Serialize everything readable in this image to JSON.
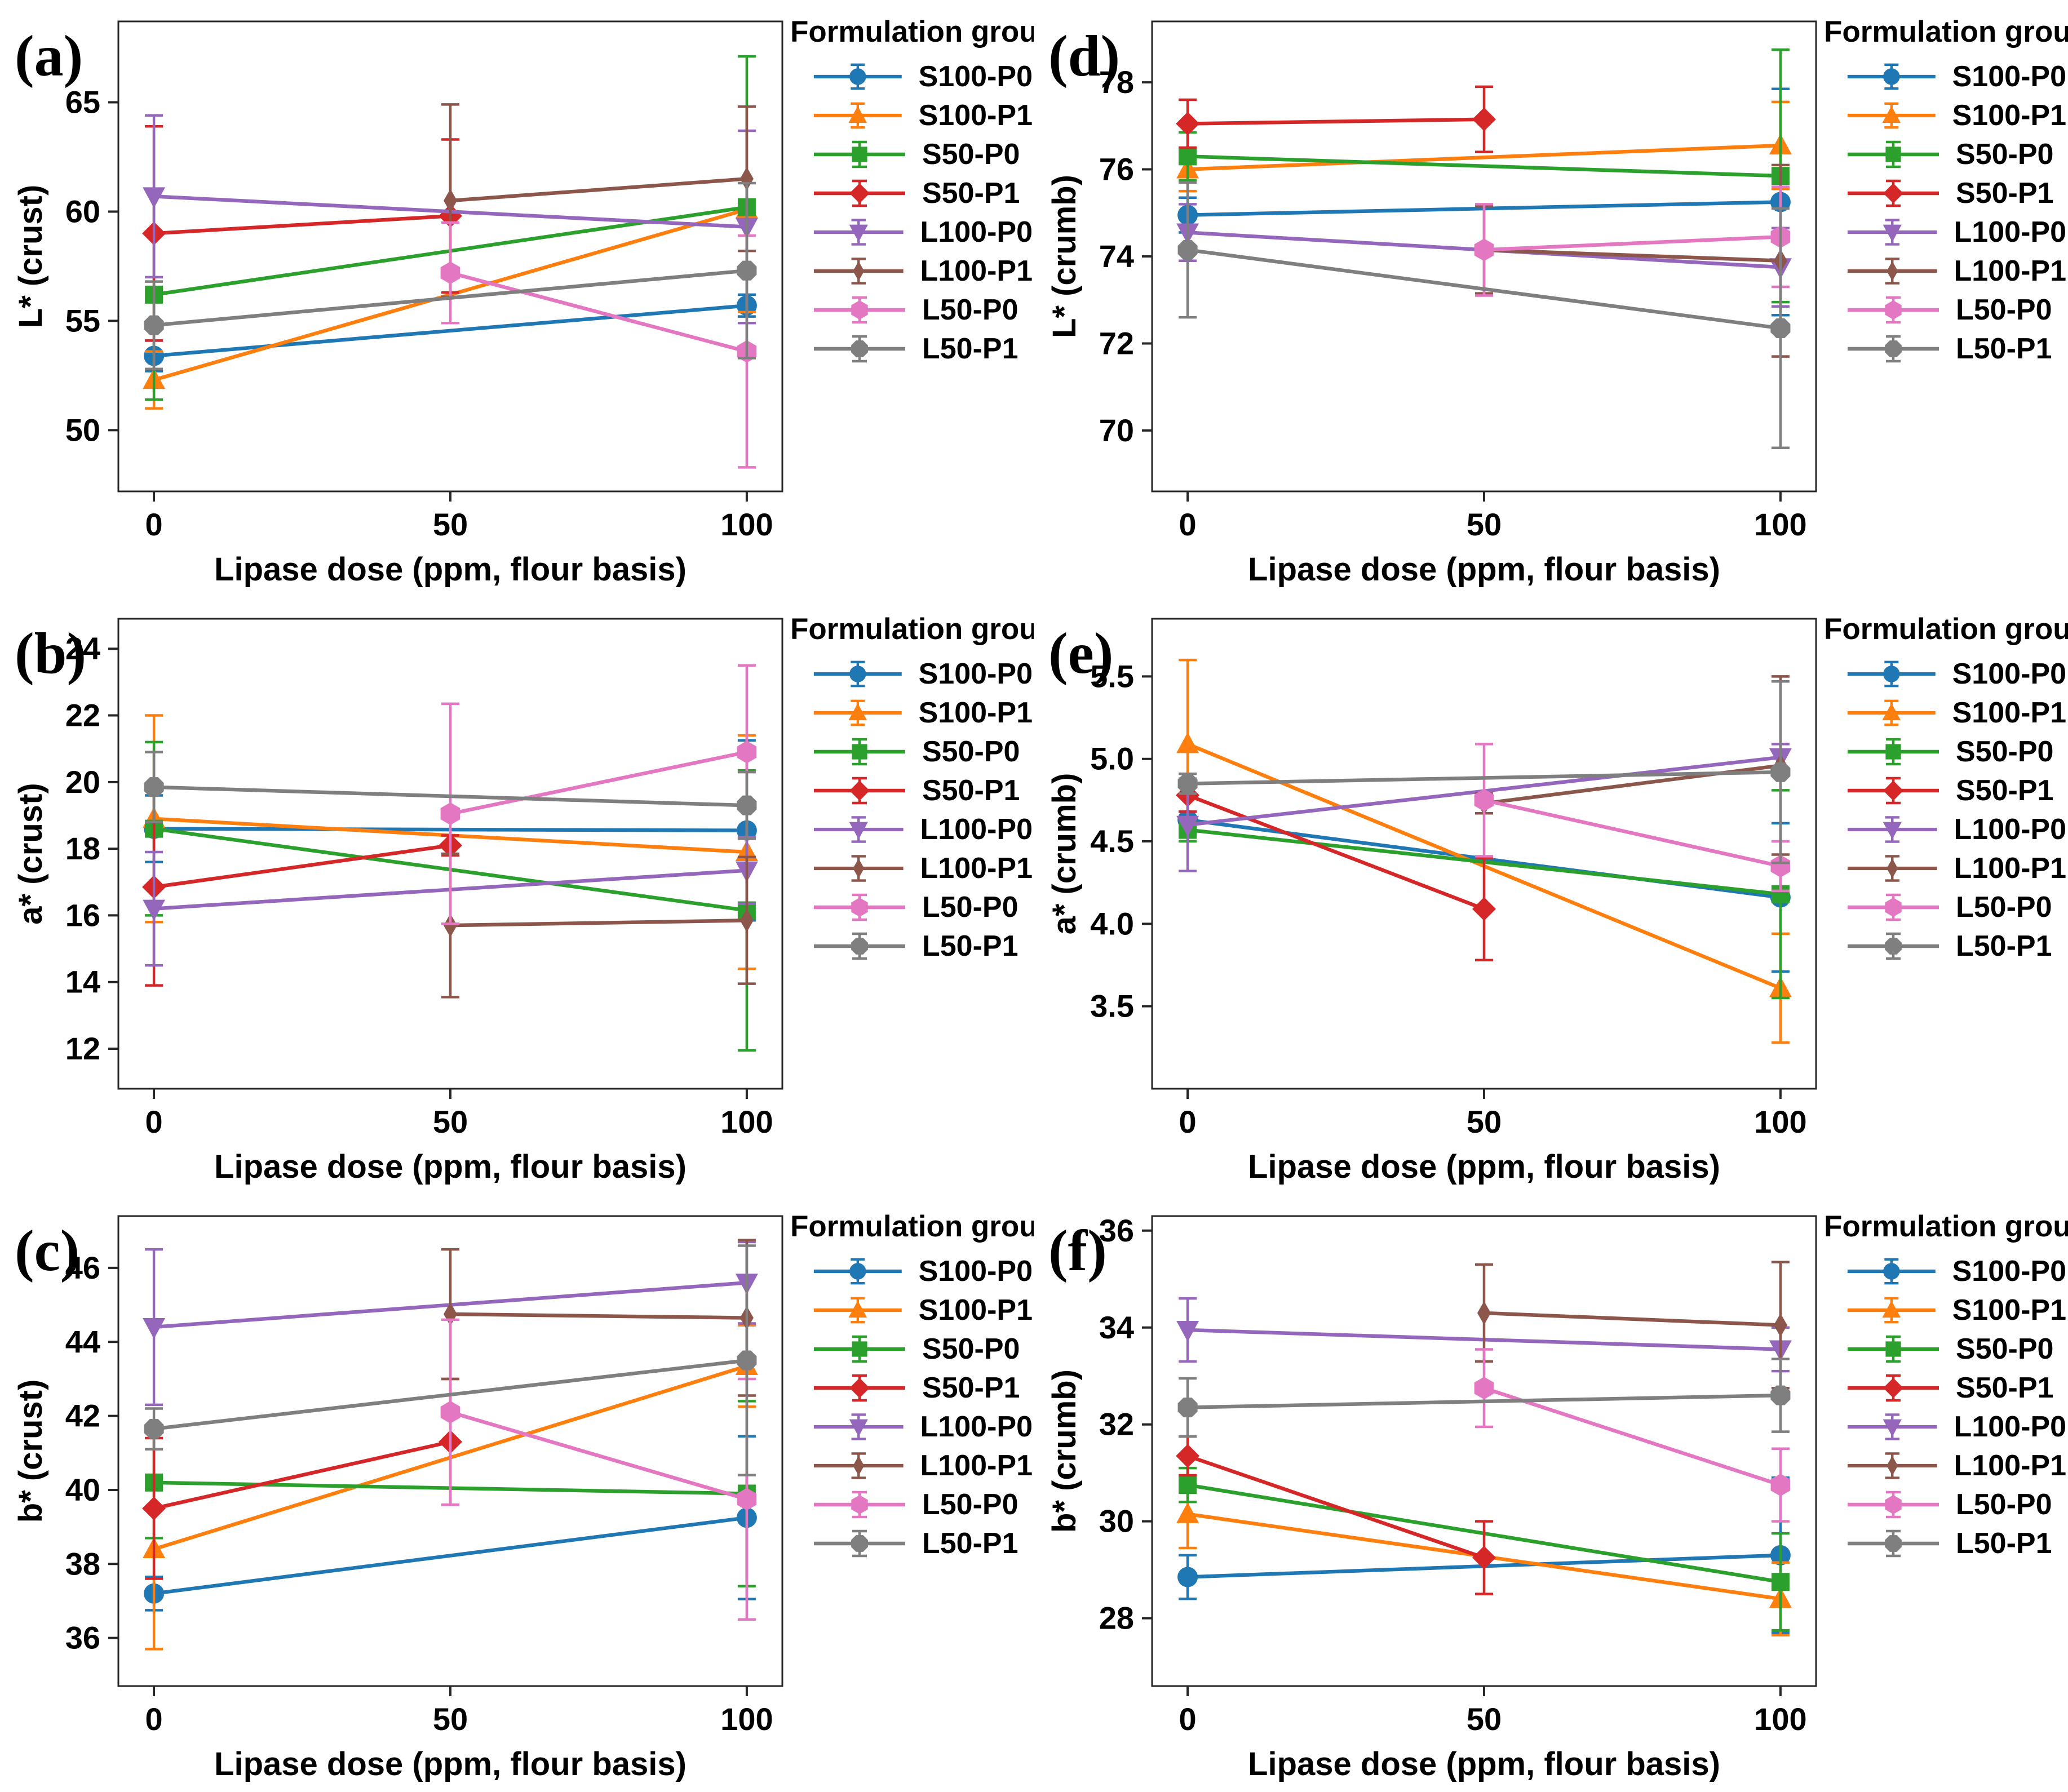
{
  "style": {
    "background": "#ffffff",
    "spine_color": "#262626",
    "text_color": "#000000"
  },
  "legend": {
    "title": "Formulation group",
    "entries": [
      {
        "label": "S100-P0",
        "color": "#1f77b4",
        "marker": "circle"
      },
      {
        "label": "S100-P1",
        "color": "#ff7f0e",
        "marker": "triangle-up"
      },
      {
        "label": "S50-P0",
        "color": "#2ca02c",
        "marker": "square"
      },
      {
        "label": "S50-P1",
        "color": "#d62728",
        "marker": "diamond"
      },
      {
        "label": "L100-P0",
        "color": "#9467bd",
        "marker": "triangle-down"
      },
      {
        "label": "L100-P1",
        "color": "#8c564b",
        "marker": "thin-diamond"
      },
      {
        "label": "L50-P0",
        "color": "#e377c2",
        "marker": "hexagon"
      },
      {
        "label": "L50-P1",
        "color": "#7f7f7f",
        "marker": "octagon"
      }
    ]
  },
  "chart_data": [
    {
      "type": "line",
      "panel_label": "(a)",
      "ylabel": "L* (crust)",
      "xlabel": "Lipase dose (ppm, flour basis)",
      "xticks": [
        0,
        50,
        100
      ],
      "xtick_labels": [
        "0",
        "50",
        "100"
      ],
      "xlim": [
        -6,
        106
      ],
      "yticks": [
        50,
        55,
        60,
        65
      ],
      "ytick_labels": [
        "50",
        "55",
        "60",
        "65"
      ],
      "ylim": [
        47.2,
        68.7
      ],
      "grid": false,
      "legend_position": "right",
      "series": [
        {
          "name": "S100-P0",
          "x": [
            0,
            100
          ],
          "y": [
            53.4,
            55.7
          ],
          "yerr": [
            0.7,
            0.5
          ]
        },
        {
          "name": "S100-P1",
          "x": [
            0,
            100
          ],
          "y": [
            52.3,
            60.1
          ],
          "yerr": [
            1.3,
            4.7
          ]
        },
        {
          "name": "S50-P0",
          "x": [
            0,
            100
          ],
          "y": [
            56.2,
            60.2
          ],
          "yerr": [
            4.8,
            6.9
          ]
        },
        {
          "name": "S50-P1",
          "x": [
            0,
            50
          ],
          "y": [
            59.0,
            59.8
          ],
          "yerr": [
            4.9,
            3.5
          ]
        },
        {
          "name": "L100-P0",
          "x": [
            0,
            100
          ],
          "y": [
            60.7,
            59.3
          ],
          "yerr": [
            3.7,
            4.4
          ]
        },
        {
          "name": "L100-P1",
          "x": [
            50,
            100
          ],
          "y": [
            60.5,
            61.5
          ],
          "yerr": [
            4.4,
            3.3
          ]
        },
        {
          "name": "L50-P0",
          "x": [
            50,
            100
          ],
          "y": [
            57.2,
            53.6
          ],
          "yerr": [
            2.3,
            5.3
          ]
        },
        {
          "name": "L50-P1",
          "x": [
            0,
            100
          ],
          "y": [
            54.8,
            57.3
          ],
          "yerr": [
            2.0,
            4.0
          ]
        }
      ]
    },
    {
      "type": "line",
      "panel_label": "(b)",
      "ylabel": "a* (crust)",
      "xlabel": "Lipase dose (ppm, flour basis)",
      "xticks": [
        0,
        50,
        100
      ],
      "xtick_labels": [
        "0",
        "50",
        "100"
      ],
      "xlim": [
        -6,
        106
      ],
      "yticks": [
        12,
        14,
        16,
        18,
        20,
        22,
        24
      ],
      "ytick_labels": [
        "12",
        "14",
        "16",
        "18",
        "20",
        "22",
        "24"
      ],
      "ylim": [
        10.8,
        24.9
      ],
      "grid": false,
      "legend_position": "right",
      "series": [
        {
          "name": "S100-P0",
          "x": [
            0,
            100
          ],
          "y": [
            18.6,
            18.55
          ],
          "yerr": [
            1.0,
            2.7
          ]
        },
        {
          "name": "S100-P1",
          "x": [
            0,
            100
          ],
          "y": [
            18.9,
            17.9
          ],
          "yerr": [
            3.1,
            3.5
          ]
        },
        {
          "name": "S50-P0",
          "x": [
            0,
            100
          ],
          "y": [
            18.6,
            16.15
          ],
          "yerr": [
            2.6,
            4.2
          ]
        },
        {
          "name": "S50-P1",
          "x": [
            0,
            50
          ],
          "y": [
            16.85,
            18.1
          ],
          "yerr": [
            2.95,
            0.3
          ]
        },
        {
          "name": "L100-P0",
          "x": [
            0,
            100
          ],
          "y": [
            16.2,
            17.35
          ],
          "yerr": [
            1.7,
            1.0
          ]
        },
        {
          "name": "L100-P1",
          "x": [
            50,
            100
          ],
          "y": [
            15.7,
            15.85
          ],
          "yerr": [
            2.15,
            1.9
          ]
        },
        {
          "name": "L50-P0",
          "x": [
            50,
            100
          ],
          "y": [
            19.05,
            20.9
          ],
          "yerr": [
            3.3,
            2.6
          ]
        },
        {
          "name": "L50-P1",
          "x": [
            0,
            100
          ],
          "y": [
            19.85,
            19.3
          ],
          "yerr": [
            1.05,
            1.0
          ]
        }
      ]
    },
    {
      "type": "line",
      "panel_label": "(c)",
      "ylabel": "b* (crust)",
      "xlabel": "Lipase dose (ppm, flour basis)",
      "xticks": [
        0,
        50,
        100
      ],
      "xtick_labels": [
        "0",
        "50",
        "100"
      ],
      "xlim": [
        -6,
        106
      ],
      "yticks": [
        36,
        38,
        40,
        42,
        44,
        46
      ],
      "ytick_labels": [
        "36",
        "38",
        "40",
        "42",
        "44",
        "46"
      ],
      "ylim": [
        34.7,
        47.4
      ],
      "grid": false,
      "legend_position": "right",
      "series": [
        {
          "name": "S100-P0",
          "x": [
            0,
            100
          ],
          "y": [
            37.2,
            39.25
          ],
          "yerr": [
            0.45,
            2.2
          ]
        },
        {
          "name": "S100-P1",
          "x": [
            0,
            100
          ],
          "y": [
            38.4,
            43.35
          ],
          "yerr": [
            2.7,
            1.1
          ]
        },
        {
          "name": "S50-P0",
          "x": [
            0,
            100
          ],
          "y": [
            40.2,
            39.9
          ],
          "yerr": [
            1.5,
            2.5
          ]
        },
        {
          "name": "S50-P1",
          "x": [
            0,
            50
          ],
          "y": [
            39.5,
            41.3
          ],
          "yerr": [
            1.9,
            1.7
          ]
        },
        {
          "name": "L100-P0",
          "x": [
            0,
            100
          ],
          "y": [
            44.4,
            45.6
          ],
          "yerr": [
            2.1,
            1.1
          ]
        },
        {
          "name": "L100-P1",
          "x": [
            50,
            100
          ],
          "y": [
            44.75,
            44.65
          ],
          "yerr": [
            1.75,
            2.1
          ]
        },
        {
          "name": "L50-P0",
          "x": [
            50,
            100
          ],
          "y": [
            42.1,
            39.75
          ],
          "yerr": [
            2.5,
            3.25
          ]
        },
        {
          "name": "L50-P1",
          "x": [
            0,
            100
          ],
          "y": [
            41.65,
            43.5
          ],
          "yerr": [
            0.55,
            3.1
          ]
        }
      ]
    },
    {
      "type": "line",
      "panel_label": "(d)",
      "ylabel": "L* (crumb)",
      "xlabel": "Lipase dose (ppm, flour basis)",
      "xticks": [
        0,
        50,
        100
      ],
      "xtick_labels": [
        "0",
        "50",
        "100"
      ],
      "xlim": [
        -6,
        106
      ],
      "yticks": [
        70,
        72,
        74,
        76,
        78
      ],
      "ytick_labels": [
        "70",
        "72",
        "74",
        "76",
        "78"
      ],
      "ylim": [
        68.6,
        79.4
      ],
      "grid": false,
      "legend_position": "right",
      "series": [
        {
          "name": "S100-P0",
          "x": [
            0,
            100
          ],
          "y": [
            74.95,
            75.25
          ],
          "yerr": [
            0.4,
            2.6
          ]
        },
        {
          "name": "S100-P1",
          "x": [
            0,
            100
          ],
          "y": [
            76.0,
            76.55
          ],
          "yerr": [
            0.5,
            1.0
          ]
        },
        {
          "name": "S50-P0",
          "x": [
            0,
            100
          ],
          "y": [
            76.3,
            75.85
          ],
          "yerr": [
            0.55,
            2.9
          ]
        },
        {
          "name": "S50-P1",
          "x": [
            0,
            50
          ],
          "y": [
            77.05,
            77.15
          ],
          "yerr": [
            0.55,
            0.75
          ]
        },
        {
          "name": "L100-P0",
          "x": [
            0,
            100
          ],
          "y": [
            74.55,
            73.75
          ],
          "yerr": [
            0.65,
            0.9
          ]
        },
        {
          "name": "L100-P1",
          "x": [
            50,
            100
          ],
          "y": [
            74.15,
            73.9
          ],
          "yerr": [
            1.0,
            2.2
          ]
        },
        {
          "name": "L50-P0",
          "x": [
            50,
            100
          ],
          "y": [
            74.15,
            74.45
          ],
          "yerr": [
            1.05,
            1.15
          ]
        },
        {
          "name": "L50-P1",
          "x": [
            0,
            100
          ],
          "y": [
            74.15,
            72.35
          ],
          "yerr": [
            1.55,
            2.75
          ]
        }
      ]
    },
    {
      "type": "line",
      "panel_label": "(e)",
      "ylabel": "a* (crumb)",
      "xlabel": "Lipase dose (ppm, flour basis)",
      "xticks": [
        0,
        50,
        100
      ],
      "xtick_labels": [
        "0",
        "50",
        "100"
      ],
      "xlim": [
        -6,
        106
      ],
      "yticks": [
        3.5,
        4.0,
        4.5,
        5.0,
        5.5
      ],
      "ytick_labels": [
        "3.5",
        "4.0",
        "4.5",
        "5.0",
        "5.5"
      ],
      "ylim": [
        3.0,
        5.85
      ],
      "grid": false,
      "legend_position": "right",
      "series": [
        {
          "name": "S100-P0",
          "x": [
            0,
            100
          ],
          "y": [
            4.63,
            4.16
          ],
          "yerr": [
            0.05,
            0.45
          ]
        },
        {
          "name": "S100-P1",
          "x": [
            0,
            100
          ],
          "y": [
            5.09,
            3.61
          ],
          "yerr": [
            0.51,
            0.33
          ]
        },
        {
          "name": "S50-P0",
          "x": [
            0,
            100
          ],
          "y": [
            4.57,
            4.18
          ],
          "yerr": [
            0.07,
            0.63
          ]
        },
        {
          "name": "S50-P1",
          "x": [
            0,
            50
          ],
          "y": [
            4.78,
            4.09
          ],
          "yerr": [
            0.1,
            0.31
          ]
        },
        {
          "name": "L100-P0",
          "x": [
            0,
            100
          ],
          "y": [
            4.6,
            5.01
          ],
          "yerr": [
            0.28,
            0.08
          ]
        },
        {
          "name": "L100-P1",
          "x": [
            50,
            100
          ],
          "y": [
            4.73,
            4.96
          ],
          "yerr": [
            0.06,
            0.54
          ]
        },
        {
          "name": "L50-P0",
          "x": [
            50,
            100
          ],
          "y": [
            4.75,
            4.35
          ],
          "yerr": [
            0.34,
            0.15
          ]
        },
        {
          "name": "L50-P1",
          "x": [
            0,
            100
          ],
          "y": [
            4.85,
            4.92
          ],
          "yerr": [
            0.06,
            0.55
          ]
        }
      ]
    },
    {
      "type": "line",
      "panel_label": "(f)",
      "ylabel": "b* (crumb)",
      "xlabel": "Lipase dose (ppm, flour basis)",
      "xticks": [
        0,
        50,
        100
      ],
      "xtick_labels": [
        "0",
        "50",
        "100"
      ],
      "xlim": [
        -6,
        106
      ],
      "yticks": [
        28,
        30,
        32,
        34,
        36
      ],
      "ytick_labels": [
        "28",
        "30",
        "32",
        "34",
        "36"
      ],
      "ylim": [
        26.6,
        36.3
      ],
      "grid": false,
      "legend_position": "right",
      "series": [
        {
          "name": "S100-P0",
          "x": [
            0,
            100
          ],
          "y": [
            28.85,
            29.3
          ],
          "yerr": [
            0.45,
            1.6
          ]
        },
        {
          "name": "S100-P1",
          "x": [
            0,
            100
          ],
          "y": [
            30.15,
            28.4
          ],
          "yerr": [
            0.7,
            0.75
          ]
        },
        {
          "name": "S50-P0",
          "x": [
            0,
            100
          ],
          "y": [
            30.75,
            28.75
          ],
          "yerr": [
            0.35,
            1.0
          ]
        },
        {
          "name": "S50-P1",
          "x": [
            0,
            50
          ],
          "y": [
            31.35,
            29.25
          ],
          "yerr": [
            0.4,
            0.75
          ]
        },
        {
          "name": "L100-P0",
          "x": [
            0,
            100
          ],
          "y": [
            33.95,
            33.55
          ],
          "yerr": [
            0.65,
            0.45
          ]
        },
        {
          "name": "L100-P1",
          "x": [
            50,
            100
          ],
          "y": [
            34.3,
            34.05
          ],
          "yerr": [
            1.0,
            1.3
          ]
        },
        {
          "name": "L50-P0",
          "x": [
            50,
            100
          ],
          "y": [
            32.75,
            30.75
          ],
          "yerr": [
            0.8,
            0.75
          ]
        },
        {
          "name": "L50-P1",
          "x": [
            0,
            100
          ],
          "y": [
            32.35,
            32.6
          ],
          "yerr": [
            0.6,
            0.75
          ]
        }
      ]
    }
  ]
}
